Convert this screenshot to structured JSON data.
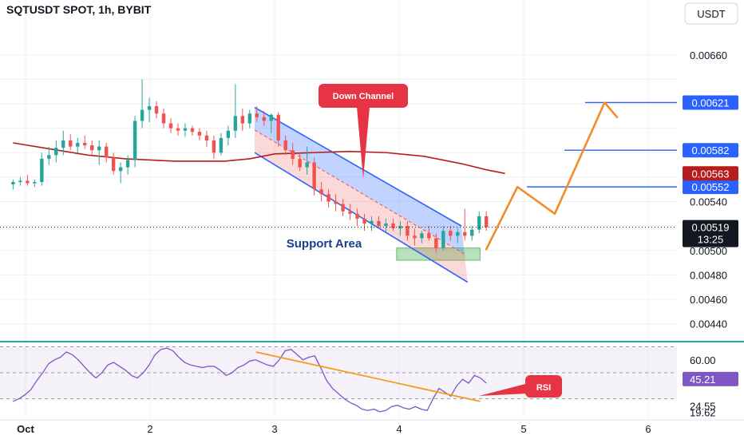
{
  "header": {
    "title": "SQTUSDT SPOT, 1h, BYBIT",
    "currency_button": "USDT"
  },
  "colors": {
    "up": "#26a69a",
    "down": "#ef5350",
    "ma": "#b71c1c",
    "channel": "#2962ff",
    "projection": "#f28c28",
    "rsi_line": "#7e57c2",
    "rsi_trend": "#f59c1a",
    "annotation": "#e73444",
    "support": "#66bb6a",
    "panel_border": "#26a6b6"
  },
  "chart_data": [
    {
      "type": "candlestick",
      "title": "SQTUSDT SPOT, 1h, BYBIT",
      "x_ticks": [
        "Oct",
        "2",
        "3",
        "4",
        "5",
        "6"
      ],
      "x_tick_values": [
        1,
        2,
        3,
        4,
        5,
        6
      ],
      "xlim": [
        0.9,
        6.25
      ],
      "ylim": [
        0.00428,
        0.00684
      ],
      "y_ticks": [
        "0.00660",
        "0.00540",
        "0.00500",
        "0.00480",
        "0.00460",
        "0.00440"
      ],
      "y_tick_values": [
        0.0066,
        0.0054,
        0.005,
        0.0048,
        0.0046,
        0.0044
      ],
      "last_price": "0.00519",
      "countdown": "13:25",
      "ma_value": "0.00563",
      "level_labels": [
        "0.00621",
        "0.00582",
        "0.00552"
      ],
      "levels": [
        0.00621,
        0.00582,
        0.00552
      ],
      "candles_ohlc": [
        [
          0.00554,
          0.00558,
          0.0055,
          0.00556
        ],
        [
          0.00556,
          0.0056,
          0.00553,
          0.00557
        ],
        [
          0.00557,
          0.00562,
          0.00553,
          0.00555
        ],
        [
          0.00555,
          0.00558,
          0.00552,
          0.00556
        ],
        [
          0.00556,
          0.0058,
          0.00553,
          0.00575
        ],
        [
          0.00575,
          0.00585,
          0.0057,
          0.00578
        ],
        [
          0.00578,
          0.0059,
          0.00572,
          0.00584
        ],
        [
          0.00584,
          0.00598,
          0.00578,
          0.0059
        ],
        [
          0.0059,
          0.00595,
          0.00582,
          0.00585
        ],
        [
          0.00585,
          0.00592,
          0.0058,
          0.00588
        ],
        [
          0.00588,
          0.00594,
          0.00583,
          0.00586
        ],
        [
          0.00586,
          0.0059,
          0.00578,
          0.00582
        ],
        [
          0.00582,
          0.0059,
          0.0057,
          0.00585
        ],
        [
          0.00585,
          0.00588,
          0.00572,
          0.00576
        ],
        [
          0.00576,
          0.0058,
          0.00562,
          0.00565
        ],
        [
          0.00565,
          0.00572,
          0.00555,
          0.00568
        ],
        [
          0.00568,
          0.00578,
          0.00562,
          0.00574
        ],
        [
          0.00574,
          0.0061,
          0.00568,
          0.00606
        ],
        [
          0.00606,
          0.0064,
          0.006,
          0.00615
        ],
        [
          0.00615,
          0.00625,
          0.00605,
          0.00618
        ],
        [
          0.00618,
          0.00622,
          0.00608,
          0.00612
        ],
        [
          0.00612,
          0.00616,
          0.006,
          0.00604
        ],
        [
          0.00604,
          0.00608,
          0.00596,
          0.006
        ],
        [
          0.006,
          0.00604,
          0.00594,
          0.00598
        ],
        [
          0.00598,
          0.00604,
          0.00593,
          0.006
        ],
        [
          0.006,
          0.00602,
          0.00594,
          0.00597
        ],
        [
          0.00597,
          0.006,
          0.0059,
          0.00594
        ],
        [
          0.00594,
          0.00598,
          0.00585,
          0.0059
        ],
        [
          0.0059,
          0.00594,
          0.00575,
          0.0058
        ],
        [
          0.0058,
          0.00596,
          0.00578,
          0.00592
        ],
        [
          0.00592,
          0.00602,
          0.00586,
          0.00598
        ],
        [
          0.00598,
          0.00636,
          0.00592,
          0.0061
        ],
        [
          0.0061,
          0.00616,
          0.00598,
          0.00604
        ],
        [
          0.00604,
          0.00615,
          0.006,
          0.00612
        ],
        [
          0.00612,
          0.00618,
          0.00605,
          0.00609
        ],
        [
          0.00609,
          0.00614,
          0.00602,
          0.00606
        ],
        [
          0.00606,
          0.00612,
          0.00596,
          0.00611
        ],
        [
          0.00611,
          0.00613,
          0.00585,
          0.0059
        ],
        [
          0.0059,
          0.00594,
          0.00578,
          0.00582
        ],
        [
          0.00582,
          0.00588,
          0.0057,
          0.00575
        ],
        [
          0.00575,
          0.0058,
          0.00565,
          0.00568
        ],
        [
          0.00568,
          0.00585,
          0.00562,
          0.00572
        ],
        [
          0.00572,
          0.00576,
          0.00545,
          0.0055
        ],
        [
          0.0055,
          0.00556,
          0.0054,
          0.00546
        ],
        [
          0.00546,
          0.0055,
          0.00535,
          0.0054
        ],
        [
          0.0054,
          0.00546,
          0.00532,
          0.00538
        ],
        [
          0.00538,
          0.00542,
          0.00528,
          0.00532
        ],
        [
          0.00532,
          0.00538,
          0.00525,
          0.0053
        ],
        [
          0.0053,
          0.00534,
          0.0052,
          0.00526
        ],
        [
          0.00526,
          0.0053,
          0.00516,
          0.00522
        ],
        [
          0.00522,
          0.00528,
          0.00516,
          0.00524
        ],
        [
          0.00524,
          0.00528,
          0.00518,
          0.0052
        ],
        [
          0.0052,
          0.00526,
          0.00514,
          0.00522
        ],
        [
          0.00522,
          0.00526,
          0.00516,
          0.00518
        ],
        [
          0.00518,
          0.00524,
          0.00512,
          0.0052
        ],
        [
          0.0052,
          0.00524,
          0.00508,
          0.00512
        ],
        [
          0.00512,
          0.00518,
          0.00504,
          0.0051
        ],
        [
          0.0051,
          0.00516,
          0.00506,
          0.00514
        ],
        [
          0.00514,
          0.0052,
          0.00508,
          0.0051
        ],
        [
          0.0051,
          0.00514,
          0.00498,
          0.00502
        ],
        [
          0.00502,
          0.0052,
          0.005,
          0.00516
        ],
        [
          0.00516,
          0.0052,
          0.00508,
          0.00512
        ],
        [
          0.00512,
          0.00518,
          0.00506,
          0.00515
        ],
        [
          0.00515,
          0.00534,
          0.00508,
          0.00512
        ],
        [
          0.00512,
          0.0052,
          0.00508,
          0.00517
        ],
        [
          0.00517,
          0.00532,
          0.00514,
          0.00528
        ],
        [
          0.00528,
          0.00532,
          0.00516,
          0.00519
        ]
      ],
      "ma_curve": [
        [
          0.9,
          0.00588
        ],
        [
          1.2,
          0.00583
        ],
        [
          1.5,
          0.00578
        ],
        [
          1.8,
          0.00575
        ],
        [
          2.2,
          0.00573
        ],
        [
          2.6,
          0.00573
        ],
        [
          2.8,
          0.00575
        ],
        [
          3.0,
          0.00579
        ],
        [
          3.3,
          0.0058
        ],
        [
          3.6,
          0.00581
        ],
        [
          3.9,
          0.0058
        ],
        [
          4.2,
          0.00577
        ],
        [
          4.5,
          0.00571
        ],
        [
          4.7,
          0.00566
        ],
        [
          4.85,
          0.00563
        ]
      ],
      "down_channel": {
        "upper": [
          [
            2.84,
            0.00617
          ],
          [
            4.5,
            0.0052
          ]
        ],
        "lower": [
          [
            2.84,
            0.0058
          ],
          [
            4.55,
            0.00474
          ]
        ]
      },
      "support_zone": {
        "x": [
          3.98,
          4.65
        ],
        "y": [
          0.00492,
          0.00502
        ]
      },
      "projection_path": [
        [
          4.7,
          0.00501
        ],
        [
          4.95,
          0.00552
        ],
        [
          5.25,
          0.0053
        ],
        [
          5.65,
          0.00621
        ],
        [
          5.75,
          0.00609
        ]
      ],
      "annotations": {
        "down_channel_label": "Down Channel",
        "support_label": "Support Area"
      }
    },
    {
      "type": "line",
      "title": "RSI",
      "ylim": [
        15,
        74
      ],
      "y_ticks": [
        "60.00",
        "24.55",
        "19.62"
      ],
      "y_tick_values": [
        60,
        24.55,
        19.62
      ],
      "current_value": "45.21",
      "bands": [
        70,
        50,
        30
      ],
      "rsi_values": [
        28,
        30,
        33,
        37,
        44,
        50,
        57,
        60,
        62,
        66,
        64,
        60,
        55,
        50,
        46,
        50,
        56,
        58,
        55,
        52,
        48,
        46,
        50,
        56,
        64,
        68,
        69,
        67,
        62,
        58,
        56,
        55,
        54,
        55,
        55,
        52,
        48,
        50,
        54,
        56,
        59,
        60,
        58,
        56,
        55,
        60,
        67,
        68,
        64,
        60,
        62,
        63,
        54,
        44,
        38,
        34,
        30,
        27,
        25,
        22,
        21,
        22,
        20,
        21,
        24,
        25,
        23,
        22,
        24,
        22,
        21,
        30,
        38,
        35,
        32,
        40,
        45,
        42,
        48,
        46,
        42
      ],
      "trend_line": [
        [
          2.85,
          66
        ],
        [
          4.65,
          28
        ]
      ],
      "annotation_label": "RSI"
    }
  ]
}
